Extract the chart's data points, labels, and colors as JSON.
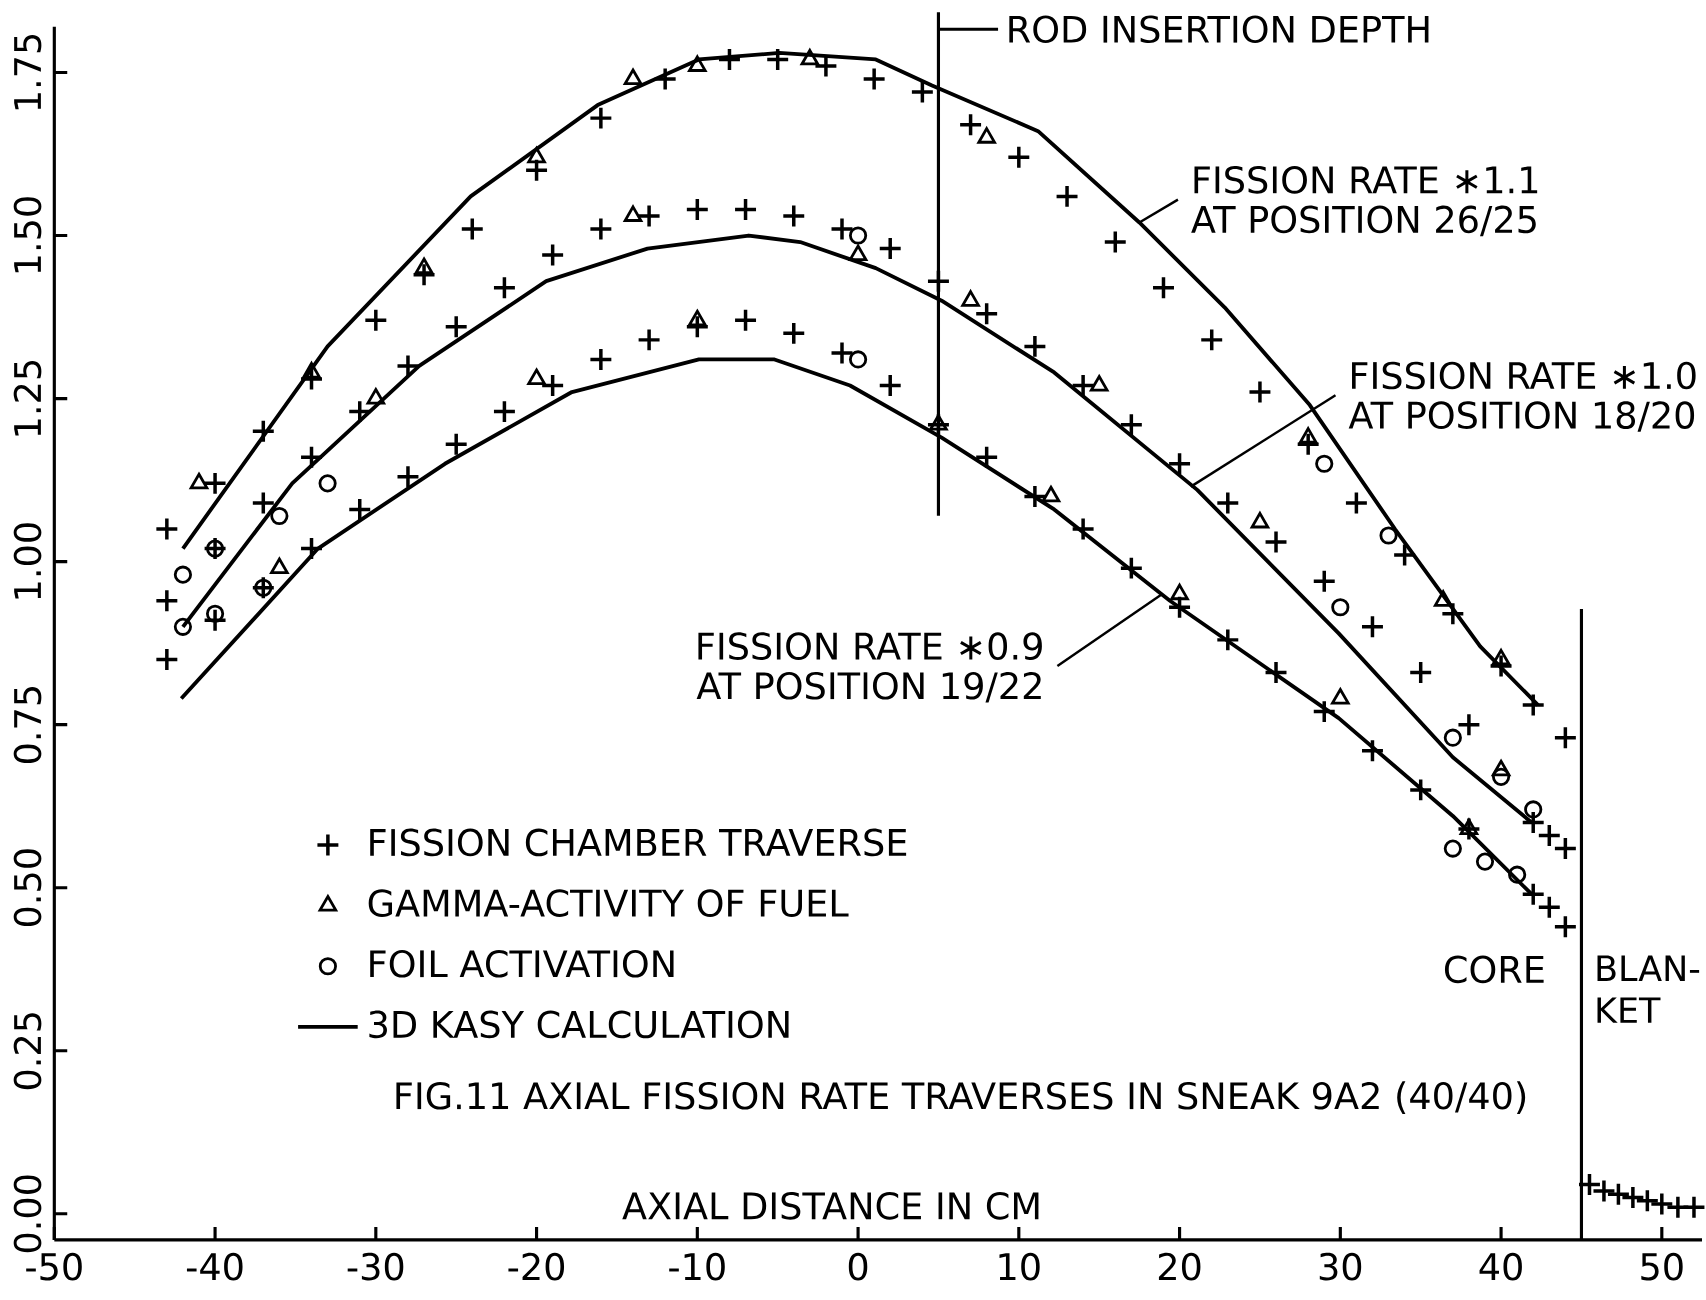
{
  "chart_data": {
    "type": "scatter",
    "title": "FIG.11  AXIAL  FISSION RATE TRAVERSES IN SNEAK 9A2 (40/40)",
    "xlabel": "AXIAL DISTANCE IN CM",
    "xlim": [
      -50,
      52.5
    ],
    "ylim": [
      -0.04,
      1.82
    ],
    "xticks": [
      -50,
      -40,
      -30,
      -20,
      -10,
      0,
      10,
      20,
      30,
      40,
      50
    ],
    "yticks": [
      {
        "value": 0,
        "label": "0.00"
      },
      {
        "value": 0.25,
        "label": "0.25"
      },
      {
        "value": 0.5,
        "label": "0.50"
      },
      {
        "value": 0.75,
        "label": "0.75"
      },
      {
        "value": 1,
        "label": "1.00"
      },
      {
        "value": 1.25,
        "label": "1.25"
      },
      {
        "value": 1.5,
        "label": "1.50"
      },
      {
        "value": 1.75,
        "label": "1.75"
      }
    ],
    "legend": "bottom left",
    "series": [
      {
        "name": "FISSION CHAMBER TRAVERSE",
        "marker": "cross",
        "color": "#000000",
        "x": [
          -43,
          -40,
          -37,
          -34,
          -30,
          -27,
          -24,
          -20,
          -16,
          -12,
          -8,
          -5,
          -2,
          1,
          4,
          7,
          10,
          13,
          16,
          19,
          22,
          25,
          28,
          31,
          34,
          37,
          40,
          42,
          44,
          -43,
          -40,
          -37,
          -34,
          -31,
          -28,
          -25,
          -22,
          -19,
          -16,
          -13,
          -10,
          -7,
          -4,
          -1,
          2,
          5,
          8,
          11,
          14,
          17,
          20,
          23,
          26,
          29,
          32,
          35,
          38,
          42,
          43,
          44,
          -43,
          -40,
          -37,
          -34,
          -31,
          -28,
          -25,
          -22,
          -19,
          -16,
          -13,
          -10,
          -7,
          -4,
          -1,
          2,
          5,
          8,
          11,
          14,
          17,
          20,
          23,
          26,
          29,
          32,
          35,
          38,
          42,
          43,
          44,
          45.5,
          46.4,
          47.3,
          48.2,
          49.1,
          50,
          51,
          52
        ],
        "values": [
          1.05,
          1.12,
          1.2,
          1.28,
          1.37,
          1.44,
          1.51,
          1.6,
          1.68,
          1.74,
          1.77,
          1.77,
          1.76,
          1.74,
          1.72,
          1.67,
          1.62,
          1.56,
          1.49,
          1.42,
          1.34,
          1.26,
          1.18,
          1.09,
          1.01,
          0.92,
          0.84,
          0.78,
          0.73,
          0.94,
          1.02,
          1.09,
          1.16,
          1.23,
          1.3,
          1.36,
          1.42,
          1.47,
          1.51,
          1.53,
          1.54,
          1.54,
          1.53,
          1.51,
          1.48,
          1.43,
          1.38,
          1.33,
          1.27,
          1.21,
          1.15,
          1.09,
          1.03,
          0.97,
          0.9,
          0.83,
          0.75,
          0.6,
          0.58,
          0.56,
          0.85,
          0.91,
          0.96,
          1.02,
          1.08,
          1.13,
          1.18,
          1.23,
          1.27,
          1.31,
          1.34,
          1.36,
          1.37,
          1.35,
          1.32,
          1.27,
          1.21,
          1.16,
          1.1,
          1.05,
          0.99,
          0.93,
          0.88,
          0.83,
          0.77,
          0.71,
          0.65,
          0.59,
          0.49,
          0.47,
          0.44,
          0.045,
          0.035,
          0.03,
          0.025,
          0.02,
          0.015,
          0.01,
          0.01
        ]
      },
      {
        "name": "GAMMA-ACTIVITY OF FUEL",
        "marker": "triangle",
        "color": "#000000",
        "x": [
          -41,
          -34,
          -27,
          -20,
          -14,
          -10,
          -3,
          8,
          28,
          36.4,
          40,
          -30,
          -14,
          0,
          7,
          15,
          25,
          40,
          -36,
          -20,
          -10,
          5,
          12,
          20,
          30,
          38
        ],
        "values": [
          1.12,
          1.29,
          1.45,
          1.62,
          1.74,
          1.76,
          1.77,
          1.65,
          1.19,
          0.94,
          0.85,
          1.25,
          1.53,
          1.47,
          1.4,
          1.27,
          1.06,
          0.68,
          0.99,
          1.28,
          1.37,
          1.21,
          1.1,
          0.95,
          0.79,
          0.59
        ]
      },
      {
        "name": "FOIL ACTIVATION",
        "marker": "circle",
        "color": "#000000",
        "x": [
          -42,
          -40,
          -36,
          -33,
          0,
          30,
          37,
          40,
          42,
          -42,
          -40,
          -37,
          0,
          37,
          39,
          41,
          29,
          33
        ],
        "values": [
          0.98,
          1.02,
          1.07,
          1.12,
          1.5,
          0.93,
          0.73,
          0.67,
          0.62,
          0.9,
          0.92,
          0.96,
          1.31,
          0.56,
          0.54,
          0.52,
          1.15,
          1.04
        ]
      },
      {
        "name": "3D KASY CALCULATION",
        "type": "line",
        "marker": "none",
        "line_style": "solid",
        "color": "#000000",
        "x": [
          -42,
          -33,
          -24.1,
          -16.2,
          -9.9,
          -4.9,
          1.1,
          4.6,
          11.2,
          17.5,
          22.8,
          28.1,
          33.4,
          38.7,
          42.3
        ],
        "values": [
          1.02,
          1.33,
          1.56,
          1.7,
          1.77,
          1.78,
          1.77,
          1.73,
          1.66,
          1.52,
          1.39,
          1.24,
          1.05,
          0.87,
          0.78
        ]
      },
      {
        "type": "line",
        "marker": "none",
        "line_style": "solid",
        "color": "#000000",
        "x": [
          -42,
          -35.2,
          -27.3,
          -19.4,
          -13.1,
          -6.8,
          -3.6,
          1.1,
          5.2,
          12.2,
          21.1,
          29.9,
          37,
          41.9
        ],
        "values": [
          0.9,
          1.12,
          1.3,
          1.43,
          1.48,
          1.5,
          1.49,
          1.45,
          1.4,
          1.29,
          1.11,
          0.89,
          0.7,
          0.6
        ]
      },
      {
        "type": "line",
        "marker": "none",
        "line_style": "solid",
        "color": "#000000",
        "x": [
          -42.1,
          -33.6,
          -25.7,
          -17.8,
          -9.9,
          -5.2,
          -0.5,
          5.2,
          12.2,
          19.4,
          29.9,
          37,
          41.9
        ],
        "values": [
          0.79,
          1.02,
          1.15,
          1.26,
          1.31,
          1.31,
          1.27,
          1.19,
          1.08,
          0.94,
          0.76,
          0.61,
          0.49
        ]
      }
    ],
    "ref_lines": [
      {
        "axis": "x",
        "value": 5,
        "label": "ROD INSERTION DEPTH",
        "color": "#000000"
      },
      {
        "axis": "x",
        "value": 45,
        "label": "CORE",
        "color": "#000000"
      }
    ],
    "annotations": [
      {
        "text": "FISSION RATE ∗1.1",
        "x": 17.5,
        "y": 1.52
      },
      "AT POSITION 26/25",
      {
        "text": "FISSION RATE ∗1.0",
        "x": 20.7,
        "y": 1.115
      },
      "AT POSITION 18/20",
      {
        "text": "FISSION RATE ∗0.9",
        "x": 18.9,
        "y": 0.95
      },
      "AT POSITION 19/22",
      "BLAN-KET"
    ]
  }
}
